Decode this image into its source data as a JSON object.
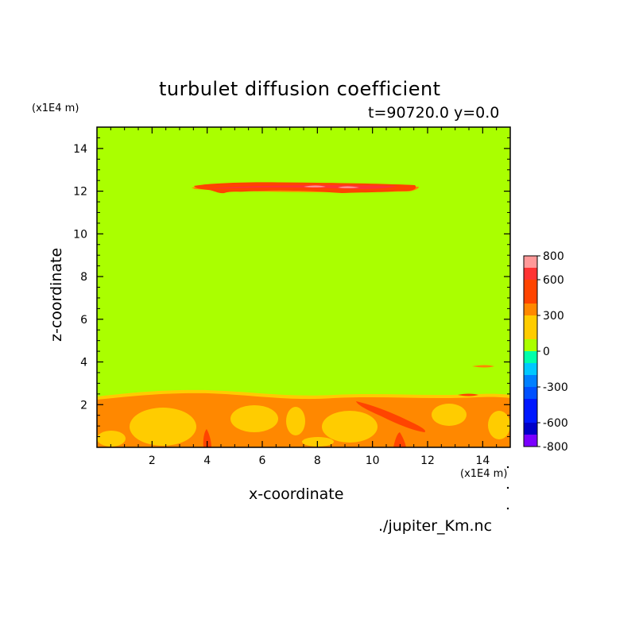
{
  "chart_data": {
    "type": "heatmap",
    "title": "turbulet diffusion coefficient",
    "subtitle": "t=90720.0 y=0.0",
    "xlabel": "x-coordinate",
    "ylabel": "z-coordinate",
    "x_unit": "(x1E4 m)",
    "y_unit": "(x1E4 m)",
    "source": "./jupiter_Km.nc",
    "xlim": [
      0,
      15
    ],
    "ylim": [
      0,
      15
    ],
    "x_ticks": [
      "2",
      "4",
      "6",
      "8",
      "10",
      "12",
      "14"
    ],
    "y_ticks": [
      "2",
      "4",
      "6",
      "8",
      "10",
      "12",
      "14"
    ],
    "background_level": 0,
    "features": [
      {
        "label": "upper band",
        "z": 12.1,
        "x_range": [
          3.5,
          11.5
        ],
        "level": 600
      },
      {
        "label": "small patch",
        "z": 3.8,
        "x_range": [
          13.5,
          14.2
        ],
        "level": 300
      },
      {
        "label": "lower layer",
        "z_range": [
          0,
          2.5
        ],
        "x_range": [
          0,
          15
        ],
        "level": 300
      }
    ],
    "colorbar": {
      "tick_labels": [
        "800",
        "600",
        "300",
        "0",
        "-300",
        "-600",
        "-800"
      ],
      "levels": [
        {
          "range": [
            700,
            800
          ],
          "color": "#ff9999"
        },
        {
          "range": [
            600,
            700
          ],
          "color": "#ff3333"
        },
        {
          "range": [
            400,
            600
          ],
          "color": "#ff4400"
        },
        {
          "range": [
            300,
            400
          ],
          "color": "#ff8800"
        },
        {
          "range": [
            100,
            300
          ],
          "color": "#ffcc00"
        },
        {
          "range": [
            0,
            100
          ],
          "color": "#aaff00"
        },
        {
          "range": [
            -100,
            0
          ],
          "color": "#00ffaa"
        },
        {
          "range": [
            -200,
            -100
          ],
          "color": "#00c8ff"
        },
        {
          "range": [
            -300,
            -200
          ],
          "color": "#0080ff"
        },
        {
          "range": [
            -400,
            -300
          ],
          "color": "#0050ff"
        },
        {
          "range": [
            -600,
            -400
          ],
          "color": "#0018ff"
        },
        {
          "range": [
            -700,
            -600
          ],
          "color": "#0000c8"
        },
        {
          "range": [
            -800,
            -700
          ],
          "color": "#7a00ff"
        }
      ]
    }
  }
}
